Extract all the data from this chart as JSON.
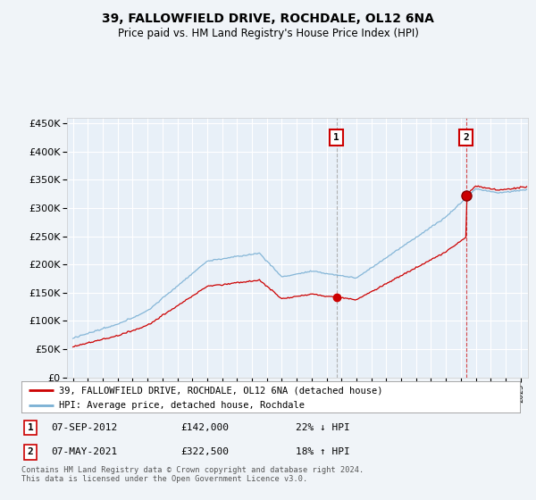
{
  "title": "39, FALLOWFIELD DRIVE, ROCHDALE, OL12 6NA",
  "subtitle": "Price paid vs. HM Land Registry's House Price Index (HPI)",
  "legend_line1": "39, FALLOWFIELD DRIVE, ROCHDALE, OL12 6NA (detached house)",
  "legend_line2": "HPI: Average price, detached house, Rochdale",
  "annotation1_date": "07-SEP-2012",
  "annotation1_price": "£142,000",
  "annotation1_hpi": "22% ↓ HPI",
  "annotation1_year": 2012.67,
  "annotation1_value": 142000,
  "annotation2_date": "07-MAY-2021",
  "annotation2_price": "£322,500",
  "annotation2_hpi": "18% ↑ HPI",
  "annotation2_year": 2021.35,
  "annotation2_value": 322500,
  "hpi_color": "#7ab0d4",
  "price_color": "#cc0000",
  "bg_color": "#f0f4f8",
  "plot_bg": "#e8f0f8",
  "footer": "Contains HM Land Registry data © Crown copyright and database right 2024.\nThis data is licensed under the Open Government Licence v3.0.",
  "ylim": [
    0,
    460000
  ],
  "yticks": [
    0,
    50000,
    100000,
    150000,
    200000,
    250000,
    300000,
    350000,
    400000,
    450000
  ],
  "xlim_start": 1994.6,
  "xlim_end": 2025.5
}
